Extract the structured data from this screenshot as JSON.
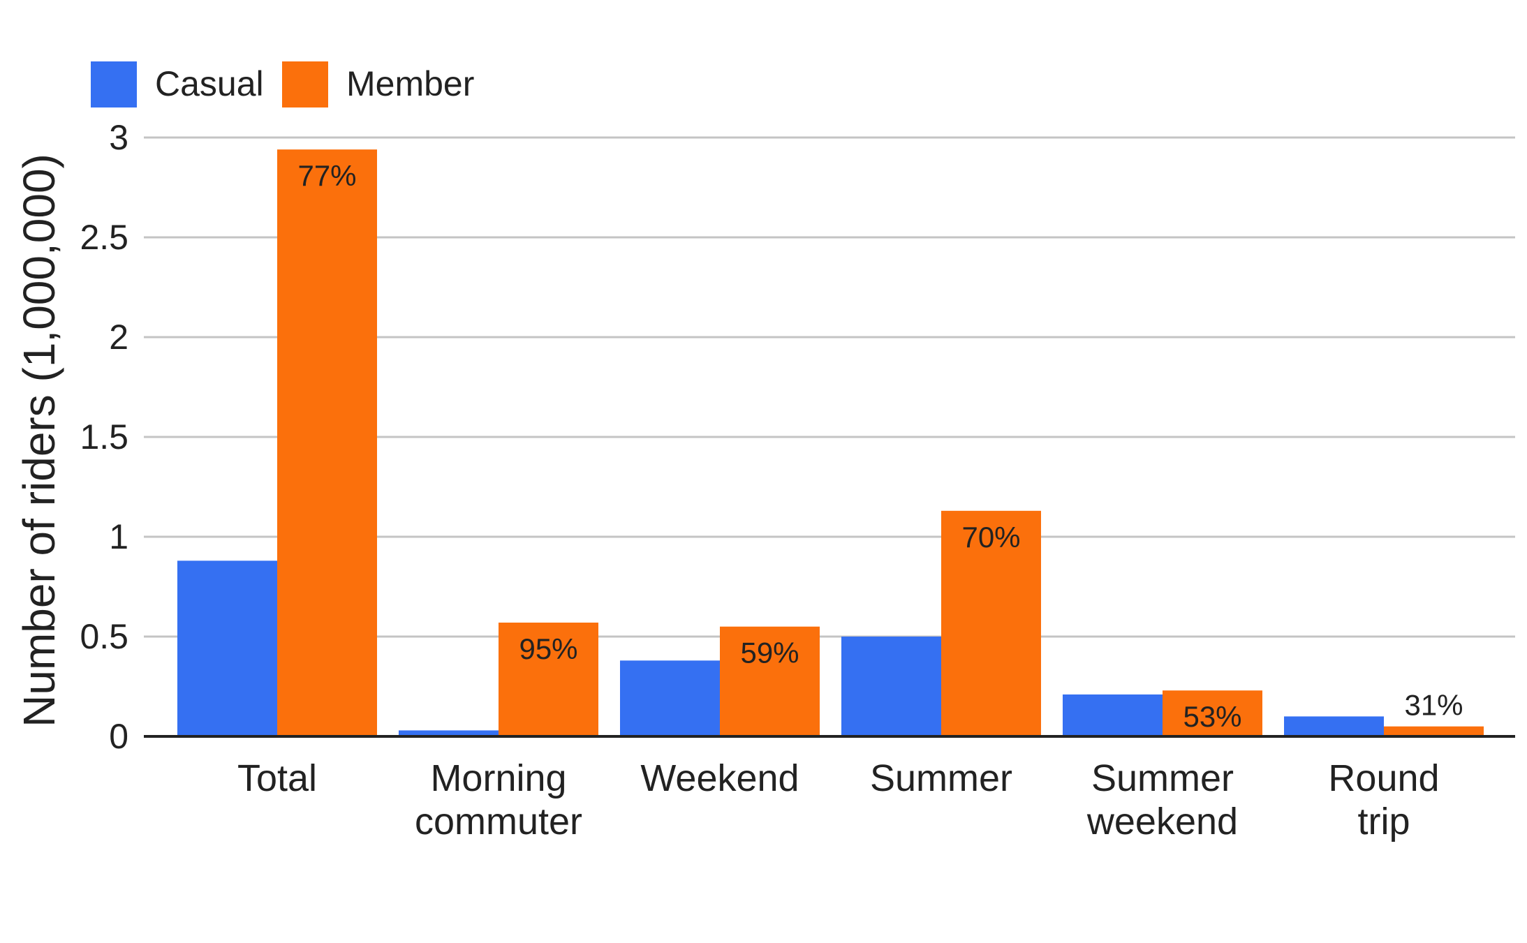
{
  "chart_data": {
    "type": "bar",
    "categories": [
      [
        "Total"
      ],
      [
        "Morning",
        "commuter"
      ],
      [
        "Weekend"
      ],
      [
        "Summer"
      ],
      [
        "Summer",
        "weekend"
      ],
      [
        "Round",
        "trip"
      ]
    ],
    "series": [
      {
        "name": "Casual",
        "color": "#3570f2",
        "values": [
          0.88,
          0.03,
          0.38,
          0.5,
          0.21,
          0.1
        ]
      },
      {
        "name": "Member",
        "color": "#fb700c",
        "values": [
          2.94,
          0.57,
          0.55,
          1.13,
          0.23,
          0.05
        ]
      }
    ],
    "member_share_labels": [
      "77%",
      "95%",
      "59%",
      "70%",
      "53%",
      "31%"
    ],
    "ylabel": "Number of riders (1,000,000)",
    "xlabel": "",
    "ylim": [
      0,
      3
    ],
    "yticks": [
      0,
      0.5,
      1,
      1.5,
      2,
      2.5,
      3
    ],
    "ytick_labels": [
      "0",
      "0.5",
      "1",
      "1.5",
      "2",
      "2.5",
      "3"
    ],
    "grid": true,
    "legend_position": "top-left"
  }
}
